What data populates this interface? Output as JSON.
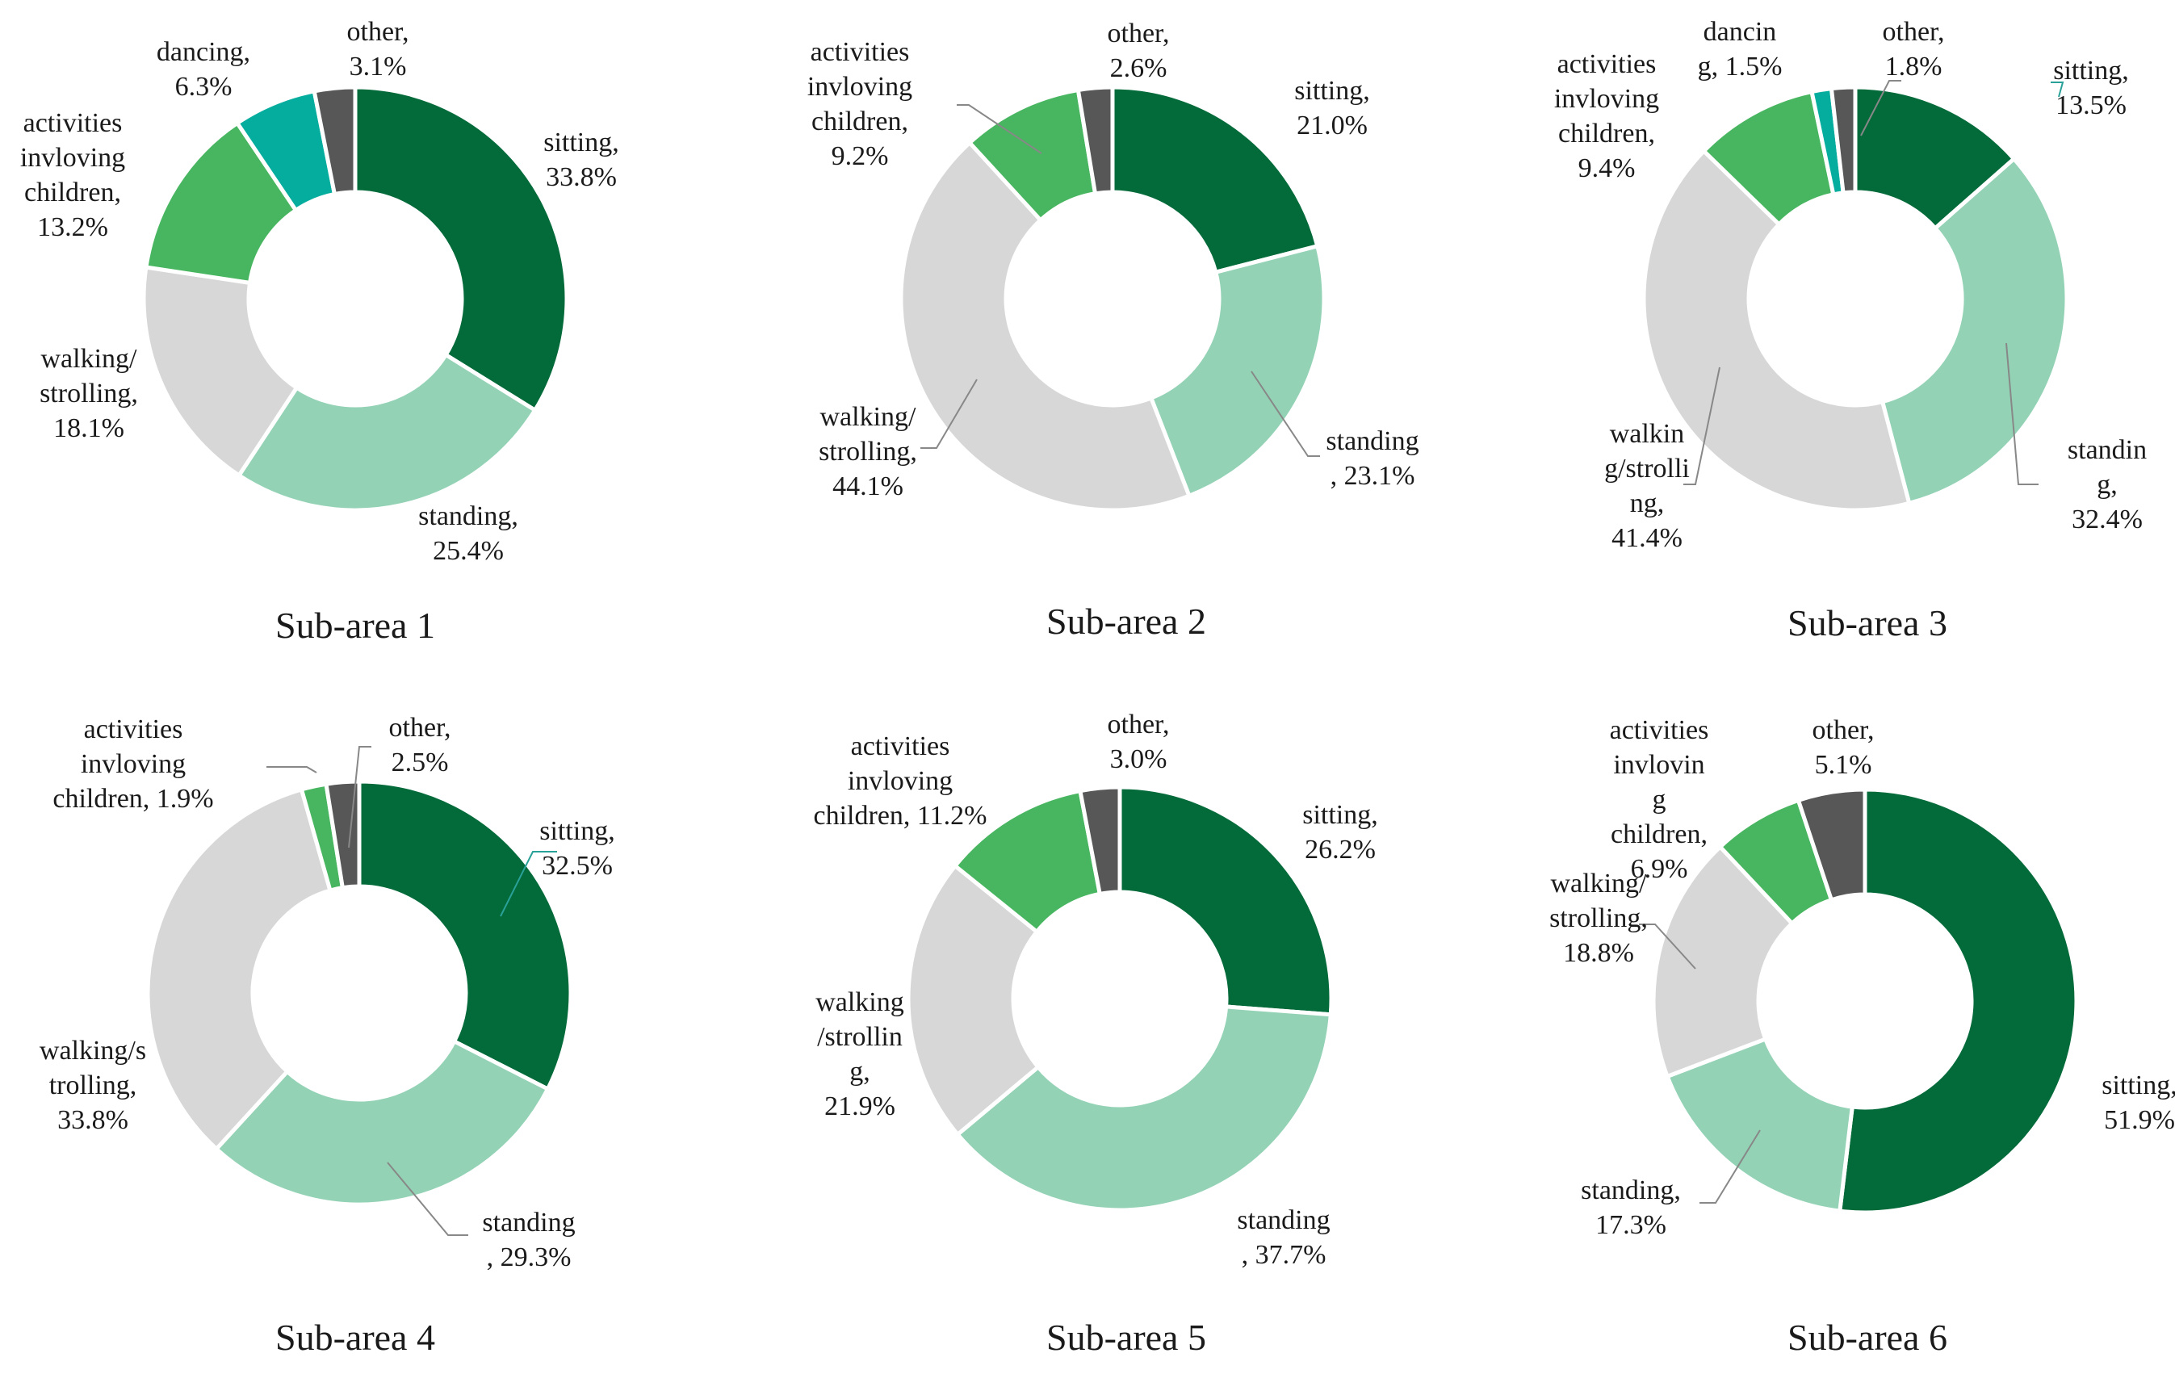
{
  "colors": {
    "sitting": "#036a3a",
    "standing": "#93d2b5",
    "walking": "#d7d7d7",
    "children": "#48b660",
    "dancing": "#04ad9d",
    "other": "#575757",
    "leader": "#888888"
  },
  "chart_data": [
    {
      "type": "pie",
      "title": "Sub-area 1",
      "slices": [
        {
          "category": "sitting",
          "value": 33.8,
          "label": [
            "sitting,",
            "33.8%"
          ]
        },
        {
          "category": "standing",
          "value": 25.4,
          "label": [
            "standing,",
            "25.4%"
          ]
        },
        {
          "category": "walking",
          "value": 18.1,
          "label": [
            "walking/",
            "strolling,",
            "18.1%"
          ]
        },
        {
          "category": "children",
          "value": 13.2,
          "label": [
            "activities",
            "invloving",
            "children,",
            "13.2%"
          ]
        },
        {
          "category": "dancing",
          "value": 6.3,
          "label": [
            "dancing,",
            "6.3%"
          ]
        },
        {
          "category": "other",
          "value": 3.1,
          "label": [
            "other,",
            "3.1%"
          ]
        }
      ]
    },
    {
      "type": "pie",
      "title": "Sub-area 2",
      "slices": [
        {
          "category": "sitting",
          "value": 21.0,
          "label": [
            "sitting,",
            "21.0%"
          ]
        },
        {
          "category": "standing",
          "value": 23.1,
          "label": [
            "standing",
            ", 23.1%"
          ]
        },
        {
          "category": "walking",
          "value": 44.1,
          "label": [
            "walking/",
            "strolling,",
            "44.1%"
          ]
        },
        {
          "category": "children",
          "value": 9.2,
          "label": [
            "activities",
            "invloving",
            "children,",
            "9.2%"
          ]
        },
        {
          "category": "other",
          "value": 2.6,
          "label": [
            "other,",
            "2.6%"
          ]
        }
      ]
    },
    {
      "type": "pie",
      "title": "Sub-area 3",
      "slices": [
        {
          "category": "sitting",
          "value": 13.5,
          "label": [
            "sitting,",
            "13.5%"
          ]
        },
        {
          "category": "standing",
          "value": 32.4,
          "label": [
            "standin",
            "g,",
            "32.4%"
          ]
        },
        {
          "category": "walking",
          "value": 41.4,
          "label": [
            "walkin",
            "g/strolli",
            "ng,",
            "41.4%"
          ]
        },
        {
          "category": "children",
          "value": 9.4,
          "label": [
            "activities",
            "invloving",
            "children,",
            "9.4%"
          ]
        },
        {
          "category": "dancing",
          "value": 1.5,
          "label": [
            "dancin",
            "g, 1.5%"
          ]
        },
        {
          "category": "other",
          "value": 1.8,
          "label": [
            "other,",
            "1.8%"
          ]
        }
      ]
    },
    {
      "type": "pie",
      "title": "Sub-area 4",
      "slices": [
        {
          "category": "sitting",
          "value": 32.5,
          "label": [
            "sitting,",
            "32.5%"
          ]
        },
        {
          "category": "standing",
          "value": 29.3,
          "label": [
            "standing",
            ", 29.3%"
          ]
        },
        {
          "category": "walking",
          "value": 33.8,
          "label": [
            "walking/s",
            "trolling,",
            "33.8%"
          ]
        },
        {
          "category": "children",
          "value": 1.9,
          "label": [
            "activities",
            "invloving",
            "children, 1.9%"
          ]
        },
        {
          "category": "other",
          "value": 2.5,
          "label": [
            "other,",
            "2.5%"
          ]
        }
      ]
    },
    {
      "type": "pie",
      "title": "Sub-area 5",
      "slices": [
        {
          "category": "sitting",
          "value": 26.2,
          "label": [
            "sitting,",
            "26.2%"
          ]
        },
        {
          "category": "standing",
          "value": 37.7,
          "label": [
            "standing",
            ", 37.7%"
          ]
        },
        {
          "category": "walking",
          "value": 21.9,
          "label": [
            "walking",
            "/strollin",
            "g,",
            "21.9%"
          ]
        },
        {
          "category": "children",
          "value": 11.2,
          "label": [
            "activities",
            "invloving",
            "children, 11.2%"
          ]
        },
        {
          "category": "other",
          "value": 3.0,
          "label": [
            "other,",
            "3.0%"
          ]
        }
      ]
    },
    {
      "type": "pie",
      "title": "Sub-area 6",
      "slices": [
        {
          "category": "sitting",
          "value": 51.9,
          "label": [
            "sitting,",
            "51.9%"
          ]
        },
        {
          "category": "standing",
          "value": 17.3,
          "label": [
            "standing,",
            "17.3%"
          ]
        },
        {
          "category": "walking",
          "value": 18.8,
          "label": [
            "walking/",
            "strolling,",
            "18.8%"
          ]
        },
        {
          "category": "children",
          "value": 6.9,
          "label": [
            "activities",
            "invlovin",
            "g",
            "children,",
            "6.9%"
          ]
        },
        {
          "category": "other",
          "value": 5.1,
          "label": [
            "other,",
            "5.1%"
          ]
        }
      ]
    }
  ]
}
